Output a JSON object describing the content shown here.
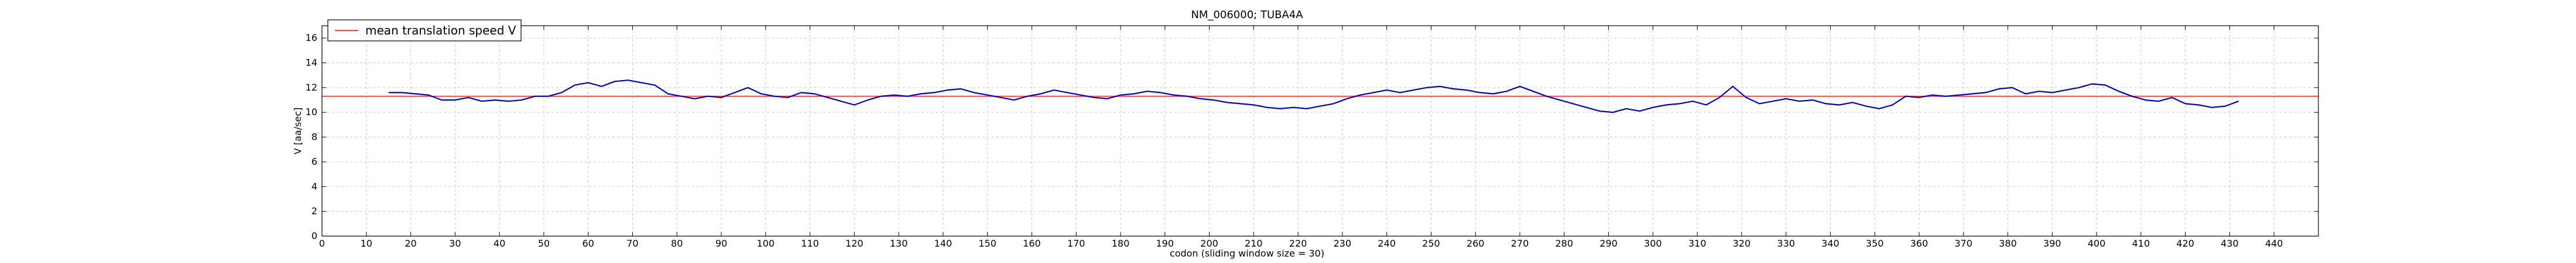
{
  "chart_data": {
    "type": "line",
    "title": "NM_006000; TUBA4A",
    "xlabel": "codon  (sliding window size = 30)",
    "ylabel": "V [aa/sec]",
    "xlim": [
      0,
      450
    ],
    "ylim": [
      0,
      17
    ],
    "xticks": [
      0,
      10,
      20,
      30,
      40,
      50,
      60,
      70,
      80,
      90,
      100,
      110,
      120,
      130,
      140,
      150,
      160,
      170,
      180,
      190,
      200,
      210,
      220,
      230,
      240,
      250,
      260,
      270,
      280,
      290,
      300,
      310,
      320,
      330,
      340,
      350,
      360,
      370,
      380,
      390,
      400,
      410,
      420,
      430,
      440
    ],
    "yticks": [
      0,
      2,
      4,
      6,
      8,
      10,
      12,
      14,
      16
    ],
    "grid": true,
    "legend_position": "top-left",
    "series": [
      {
        "name": "V",
        "color": "#0000cc",
        "x": [
          15,
          18,
          21,
          24,
          27,
          30,
          33,
          36,
          39,
          42,
          45,
          48,
          51,
          54,
          57,
          60,
          63,
          66,
          69,
          72,
          75,
          78,
          81,
          84,
          87,
          90,
          93,
          96,
          99,
          102,
          105,
          108,
          111,
          114,
          117,
          120,
          123,
          126,
          129,
          132,
          135,
          138,
          141,
          144,
          147,
          150,
          153,
          156,
          159,
          162,
          165,
          168,
          171,
          174,
          177,
          180,
          183,
          186,
          189,
          192,
          195,
          198,
          201,
          204,
          207,
          210,
          213,
          216,
          219,
          222,
          225,
          228,
          231,
          234,
          237,
          240,
          243,
          246,
          249,
          252,
          255,
          258,
          261,
          264,
          267,
          270,
          273,
          276,
          279,
          282,
          285,
          288,
          291,
          294,
          297,
          300,
          303,
          306,
          309,
          312,
          315,
          318,
          321,
          324,
          327,
          330,
          333,
          336,
          339,
          342,
          345,
          348,
          351,
          354,
          357,
          360,
          363,
          366,
          369,
          372,
          375,
          378,
          381,
          384,
          387,
          390,
          393,
          396,
          399,
          402,
          405,
          408,
          411,
          414,
          417,
          420,
          423,
          426,
          429,
          432
        ],
        "y": [
          11.6,
          11.6,
          11.5,
          11.4,
          11.0,
          11.0,
          11.2,
          10.9,
          11.0,
          10.9,
          11.0,
          11.3,
          11.3,
          11.6,
          12.2,
          12.4,
          12.1,
          12.5,
          12.6,
          12.4,
          12.2,
          11.5,
          11.3,
          11.1,
          11.3,
          11.2,
          11.6,
          12.0,
          11.5,
          11.3,
          11.2,
          11.6,
          11.5,
          11.2,
          10.9,
          10.6,
          11.0,
          11.3,
          11.4,
          11.3,
          11.5,
          11.6,
          11.8,
          11.9,
          11.6,
          11.4,
          11.2,
          11.0,
          11.3,
          11.5,
          11.8,
          11.6,
          11.4,
          11.2,
          11.1,
          11.4,
          11.5,
          11.7,
          11.6,
          11.4,
          11.3,
          11.1,
          11.0,
          10.8,
          10.7,
          10.6,
          10.4,
          10.3,
          10.4,
          10.3,
          10.5,
          10.7,
          11.1,
          11.4,
          11.6,
          11.8,
          11.6,
          11.8,
          12.0,
          12.1,
          11.9,
          11.8,
          11.6,
          11.5,
          11.7,
          12.1,
          11.7,
          11.3,
          11.0,
          10.7,
          10.4,
          10.1,
          10.0,
          10.3,
          10.1,
          10.4,
          10.6,
          10.7,
          10.9,
          10.6,
          11.2,
          12.1,
          11.2,
          10.7,
          10.9,
          11.1,
          10.9,
          11.0,
          10.7,
          10.6,
          10.8,
          10.5,
          10.3,
          10.6,
          11.3,
          11.2,
          11.4,
          11.3,
          11.4,
          11.5,
          11.6,
          11.9,
          12.0,
          11.5,
          11.7,
          11.6,
          11.8,
          12.0,
          12.3,
          12.2,
          11.7,
          11.3,
          11.0,
          10.9,
          11.2,
          10.7,
          10.6,
          10.4,
          10.5,
          10.9
        ]
      },
      {
        "name": "mean translation speed V",
        "color": "#ff4444",
        "y": 11.3
      }
    ]
  }
}
